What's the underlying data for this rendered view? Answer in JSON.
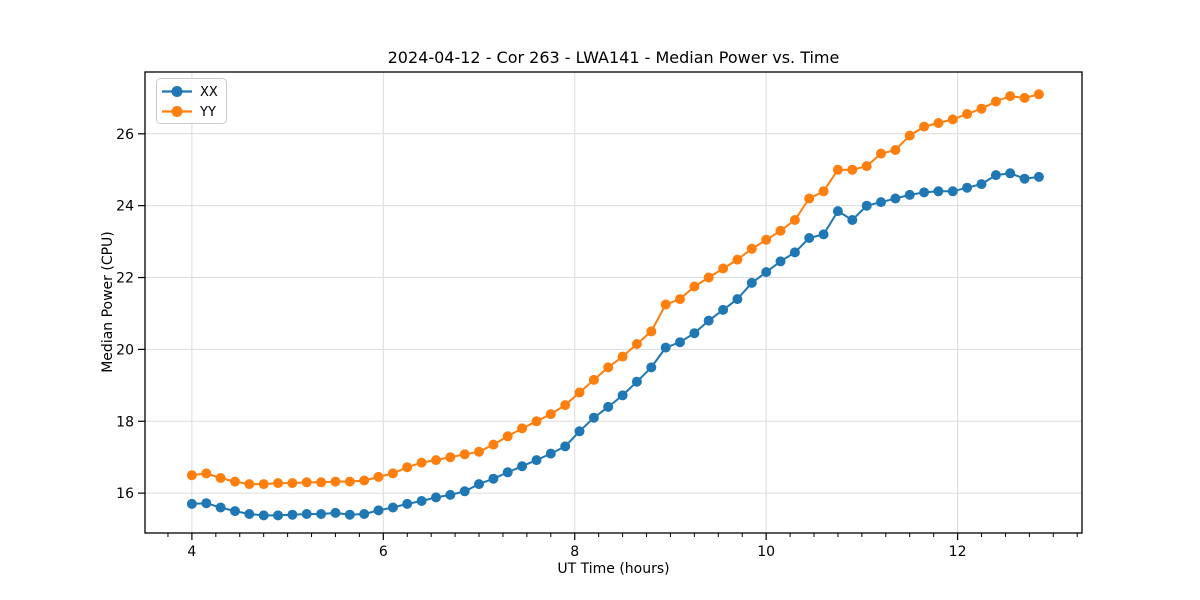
{
  "chart_data": {
    "type": "line",
    "title": "2024-04-12 - Cor 263 - LWA141 - Median Power vs. Time",
    "xlabel": "UT Time (hours)",
    "ylabel": "Median Power (CPU)",
    "xlim": [
      3.51,
      13.3
    ],
    "ylim": [
      14.89,
      27.72
    ],
    "xticks": [
      4,
      6,
      8,
      10,
      12
    ],
    "yticks": [
      16,
      18,
      20,
      22,
      24,
      26
    ],
    "x_minor_step": 0.25,
    "grid": true,
    "grid_color": "#dcdcdc",
    "axis_color": "#000000",
    "legend_position": "upper-left",
    "x": [
      4.0,
      4.15,
      4.3,
      4.45,
      4.6,
      4.75,
      4.9,
      5.05,
      5.2,
      5.35,
      5.5,
      5.65,
      5.8,
      5.95,
      6.1,
      6.25,
      6.4,
      6.55,
      6.7,
      6.85,
      7.0,
      7.15,
      7.3,
      7.45,
      7.6,
      7.75,
      7.9,
      8.05,
      8.2,
      8.35,
      8.5,
      8.65,
      8.8,
      8.95,
      9.1,
      9.25,
      9.4,
      9.55,
      9.7,
      9.85,
      10.0,
      10.15,
      10.3,
      10.45,
      10.6,
      10.75,
      10.9,
      11.05,
      11.2,
      11.35,
      11.5,
      11.65,
      11.8,
      11.95,
      12.1,
      12.25,
      12.4,
      12.55,
      12.7,
      12.85
    ],
    "series": [
      {
        "name": "XX",
        "color": "#1f77b4",
        "values": [
          15.7,
          15.72,
          15.6,
          15.5,
          15.42,
          15.38,
          15.38,
          15.4,
          15.42,
          15.42,
          15.45,
          15.4,
          15.42,
          15.52,
          15.6,
          15.7,
          15.78,
          15.88,
          15.95,
          16.05,
          16.25,
          16.4,
          16.58,
          16.75,
          16.92,
          17.1,
          17.3,
          17.72,
          18.1,
          18.4,
          18.72,
          19.1,
          19.5,
          20.05,
          20.2,
          20.45,
          20.8,
          21.1,
          21.4,
          21.85,
          22.15,
          22.45,
          22.7,
          23.1,
          23.2,
          23.85,
          23.6,
          24.0,
          24.1,
          24.2,
          24.3,
          24.37,
          24.4,
          24.4,
          24.5,
          24.6,
          24.85,
          24.9,
          24.75,
          24.8
        ]
      },
      {
        "name": "YY",
        "color": "#ff7f0e",
        "values": [
          16.5,
          16.55,
          16.42,
          16.32,
          16.25,
          16.25,
          16.28,
          16.28,
          16.3,
          16.3,
          16.32,
          16.32,
          16.35,
          16.45,
          16.55,
          16.72,
          16.85,
          16.92,
          17.0,
          17.08,
          17.15,
          17.35,
          17.58,
          17.8,
          18.0,
          18.2,
          18.45,
          18.8,
          19.15,
          19.5,
          19.8,
          20.15,
          20.5,
          21.25,
          21.4,
          21.75,
          22.0,
          22.25,
          22.5,
          22.8,
          23.05,
          23.3,
          23.6,
          24.2,
          24.4,
          25.0,
          25.0,
          25.1,
          25.45,
          25.55,
          25.95,
          26.2,
          26.3,
          26.4,
          26.55,
          26.7,
          26.9,
          27.05,
          27.0,
          27.1
        ]
      }
    ]
  }
}
